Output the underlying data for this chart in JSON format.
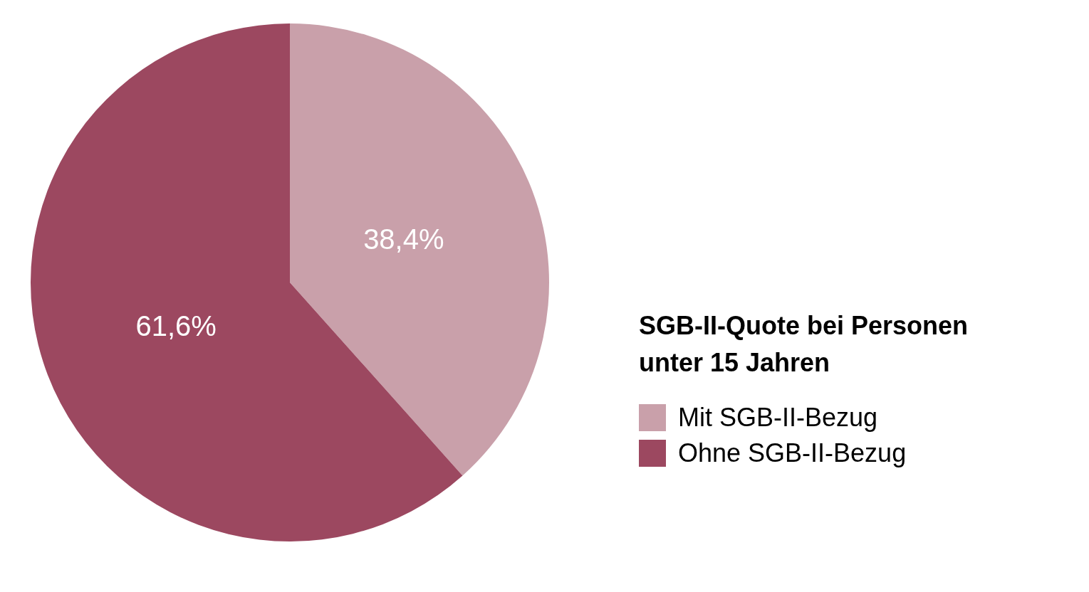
{
  "chart_data": {
    "type": "pie",
    "legend_title": "SGB-II-Quote bei Personen unter 15 Jahren",
    "categories": [
      "Mit SGB-II-Bezug",
      "Ohne SGB-II-Bezug"
    ],
    "values": [
      38.4,
      61.6
    ],
    "colors": [
      "#c9a0aa",
      "#9c4860"
    ],
    "value_labels": [
      "38,4%",
      "61,6%"
    ],
    "legend": "right"
  }
}
